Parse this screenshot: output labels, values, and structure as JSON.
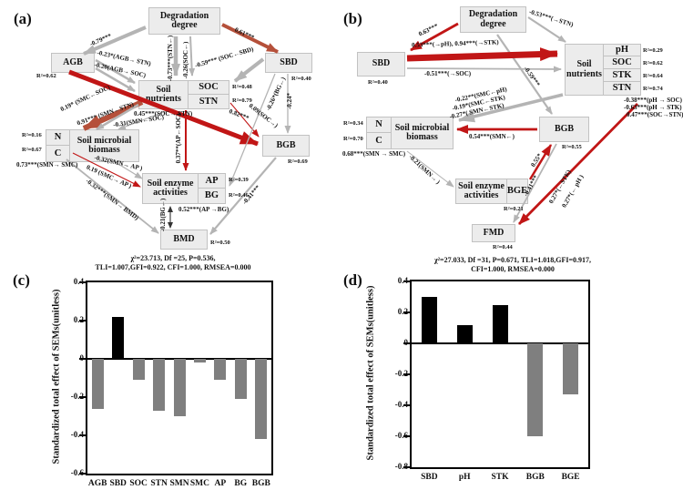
{
  "panel_letters": {
    "a": "(a)",
    "b": "(b)",
    "c": "(c)",
    "d": "(d)"
  },
  "sem_a": {
    "boxes": {
      "degradation": "Degradation degree",
      "agb": "AGB",
      "sbd": "SBD",
      "soil_nutrients": "Soil nutrients",
      "soc": "SOC",
      "stn": "STN",
      "n": "N",
      "c": "C",
      "smb": "Soil microbial biomass",
      "bgb": "BGB",
      "enzyme": "Soil enzyme activities",
      "ap": "AP",
      "bg": "BG",
      "bmd": "BMD"
    },
    "r2": {
      "agb": "R²=0.62",
      "sbd": "R²=0.40",
      "soc": "R²=0.48",
      "stn": "R²=0.79",
      "n": "R²=0.16",
      "c": "R²=0.67",
      "bgb": "R²=0.69",
      "ap": "R²=0.39",
      "bg": "R²=0.46",
      "bmd": "R²=0.50"
    },
    "edges": {
      "deg_agb": "-0.79***",
      "deg_sbd": "0.61***",
      "deg_stn": "-0.73***(STN←)",
      "deg_soc": "-0.26(SOC←)",
      "agb_stn": "-0.23*(AGB→ STN)",
      "agb_soc": "-0.20(AGB→ SOC)",
      "sbd_soc": "-0.59*** (SOC←SBD)",
      "soc_stn": "0.45***(SOC→ STN)",
      "smc_soc": "0.19* (SMC←SOC)",
      "smn_stn": "0.91*** (SMN←STN)",
      "smn_soc": "-0.31(SMN←SOC)",
      "agb_bgb": "0.82***",
      "soc_bgb": "0.09(SOC→)",
      "sbd_bg": "-0.26*(BG←)",
      "sbd_bgb": "-0.24*",
      "soc_ap": "0.37**(AP←SOC)",
      "smn_ap": "-0.32(SMN→ AP )",
      "smc_ap": "0.19 (SMC→ AP )",
      "smn_smc": "0.73***(SMN→ SMC)",
      "smn_bmd": "-0.32***(SMN→ BMD)",
      "bgb_bmd": "-0.41***",
      "bg_bmd": "-0.21(BG←)",
      "ap_bg": "0.52***(AP →BG)"
    },
    "fit": [
      "χ²=23.713, Df =25, P=0.536,",
      "TLI=1.007,GFI=0.922, CFI=1.000, RMSEA=0.000"
    ]
  },
  "sem_b": {
    "boxes": {
      "degradation": "Degradation degree",
      "sbd": "SBD",
      "soil_nutrients": "Soil nutrients",
      "ph": "pH",
      "soc": "SOC",
      "stk": "STK",
      "stn": "STN",
      "n": "N",
      "c": "C",
      "smb": "Soil microbial biomass",
      "bgb": "BGB",
      "enzyme": "Soil enzyme activities",
      "bge": "BGE",
      "fmd": "FMD"
    },
    "r2": {
      "sbd": "R²=0.40",
      "ph": "R²=0.29",
      "soc": "R²=0.62",
      "stk": "R²=0.64",
      "stn": "R²=0.74",
      "n": "R²=0.34",
      "c": "R²=0.70",
      "bgb": "R²=0.55",
      "bge": "R²=0.21",
      "fmd": "R²=0.44"
    },
    "edges": {
      "deg_sbd": "0.63***",
      "deg_stn": "-0.53***(→STN)",
      "deg_bgb": "-0.59***",
      "sbd_nutrients": "0.53***(→pH), 0.94***(→STK)",
      "sbd_soc": "-0.51***(→SOC)",
      "smc_ph": "-0.22**(SMC←pH)",
      "smc_stk": "-0.19*(SMC←STK)",
      "smn_stk": "-0.27*( SMN←STK)",
      "ph_soc": "-0.38***(pH → SOC)",
      "ph_stk": "-0.63***(pH → STK)",
      "soc_stn": "0.47***(SOC→STN)",
      "bgb_smn": "0.54***(SMN←)",
      "smn_smc": "0.68***(SMN → SMC)",
      "smn_enzyme": "-0.21(SMN→ )",
      "bge_bgb": "0.55*",
      "bgb_fmd": "-0.41***",
      "fmd_stk": "0.27*(←STK)",
      "fmd_ph": "0.27*(← pH )"
    },
    "fit": [
      "χ²=27.033, Df =31, P=0.671, TLI=1.018,GFI=0.917,",
      "CFI=1.000, RMSEA=0.000"
    ]
  },
  "chart_data": [
    {
      "type": "bar",
      "panel": "c",
      "categories": [
        "AGB",
        "SBD",
        "SOC",
        "STN",
        "SMN",
        "SMC",
        "AP",
        "BG",
        "BGB"
      ],
      "values": [
        -0.26,
        0.22,
        -0.11,
        -0.27,
        -0.3,
        -0.02,
        -0.11,
        -0.21,
        -0.42
      ],
      "bar_colors": [
        "#7f7f7f",
        "#000000",
        "#7f7f7f",
        "#7f7f7f",
        "#7f7f7f",
        "#7f7f7f",
        "#7f7f7f",
        "#7f7f7f",
        "#7f7f7f"
      ],
      "title": "",
      "xlabel": "",
      "ylabel": "Standardized total effect of SEMs(unitless)",
      "ylim": [
        -0.6,
        0.4
      ],
      "yticks": [
        0.4,
        0.2,
        0,
        -0.2,
        -0.4,
        -0.6
      ],
      "grid": false,
      "legend": "none"
    },
    {
      "type": "bar",
      "panel": "d",
      "categories": [
        "SBD",
        "pH",
        "STK",
        "BGB",
        "BGE"
      ],
      "values": [
        0.3,
        0.12,
        0.25,
        -0.6,
        -0.33
      ],
      "bar_colors": [
        "#000000",
        "#000000",
        "#000000",
        "#7f7f7f",
        "#7f7f7f"
      ],
      "title": "",
      "xlabel": "",
      "ylabel": "Standardized total effect of SEMs(unitless)",
      "ylim": [
        -0.8,
        0.4
      ],
      "yticks": [
        0.4,
        0.2,
        0,
        -0.2,
        -0.4,
        -0.6,
        -0.8
      ],
      "grid": false,
      "legend": "none"
    }
  ]
}
